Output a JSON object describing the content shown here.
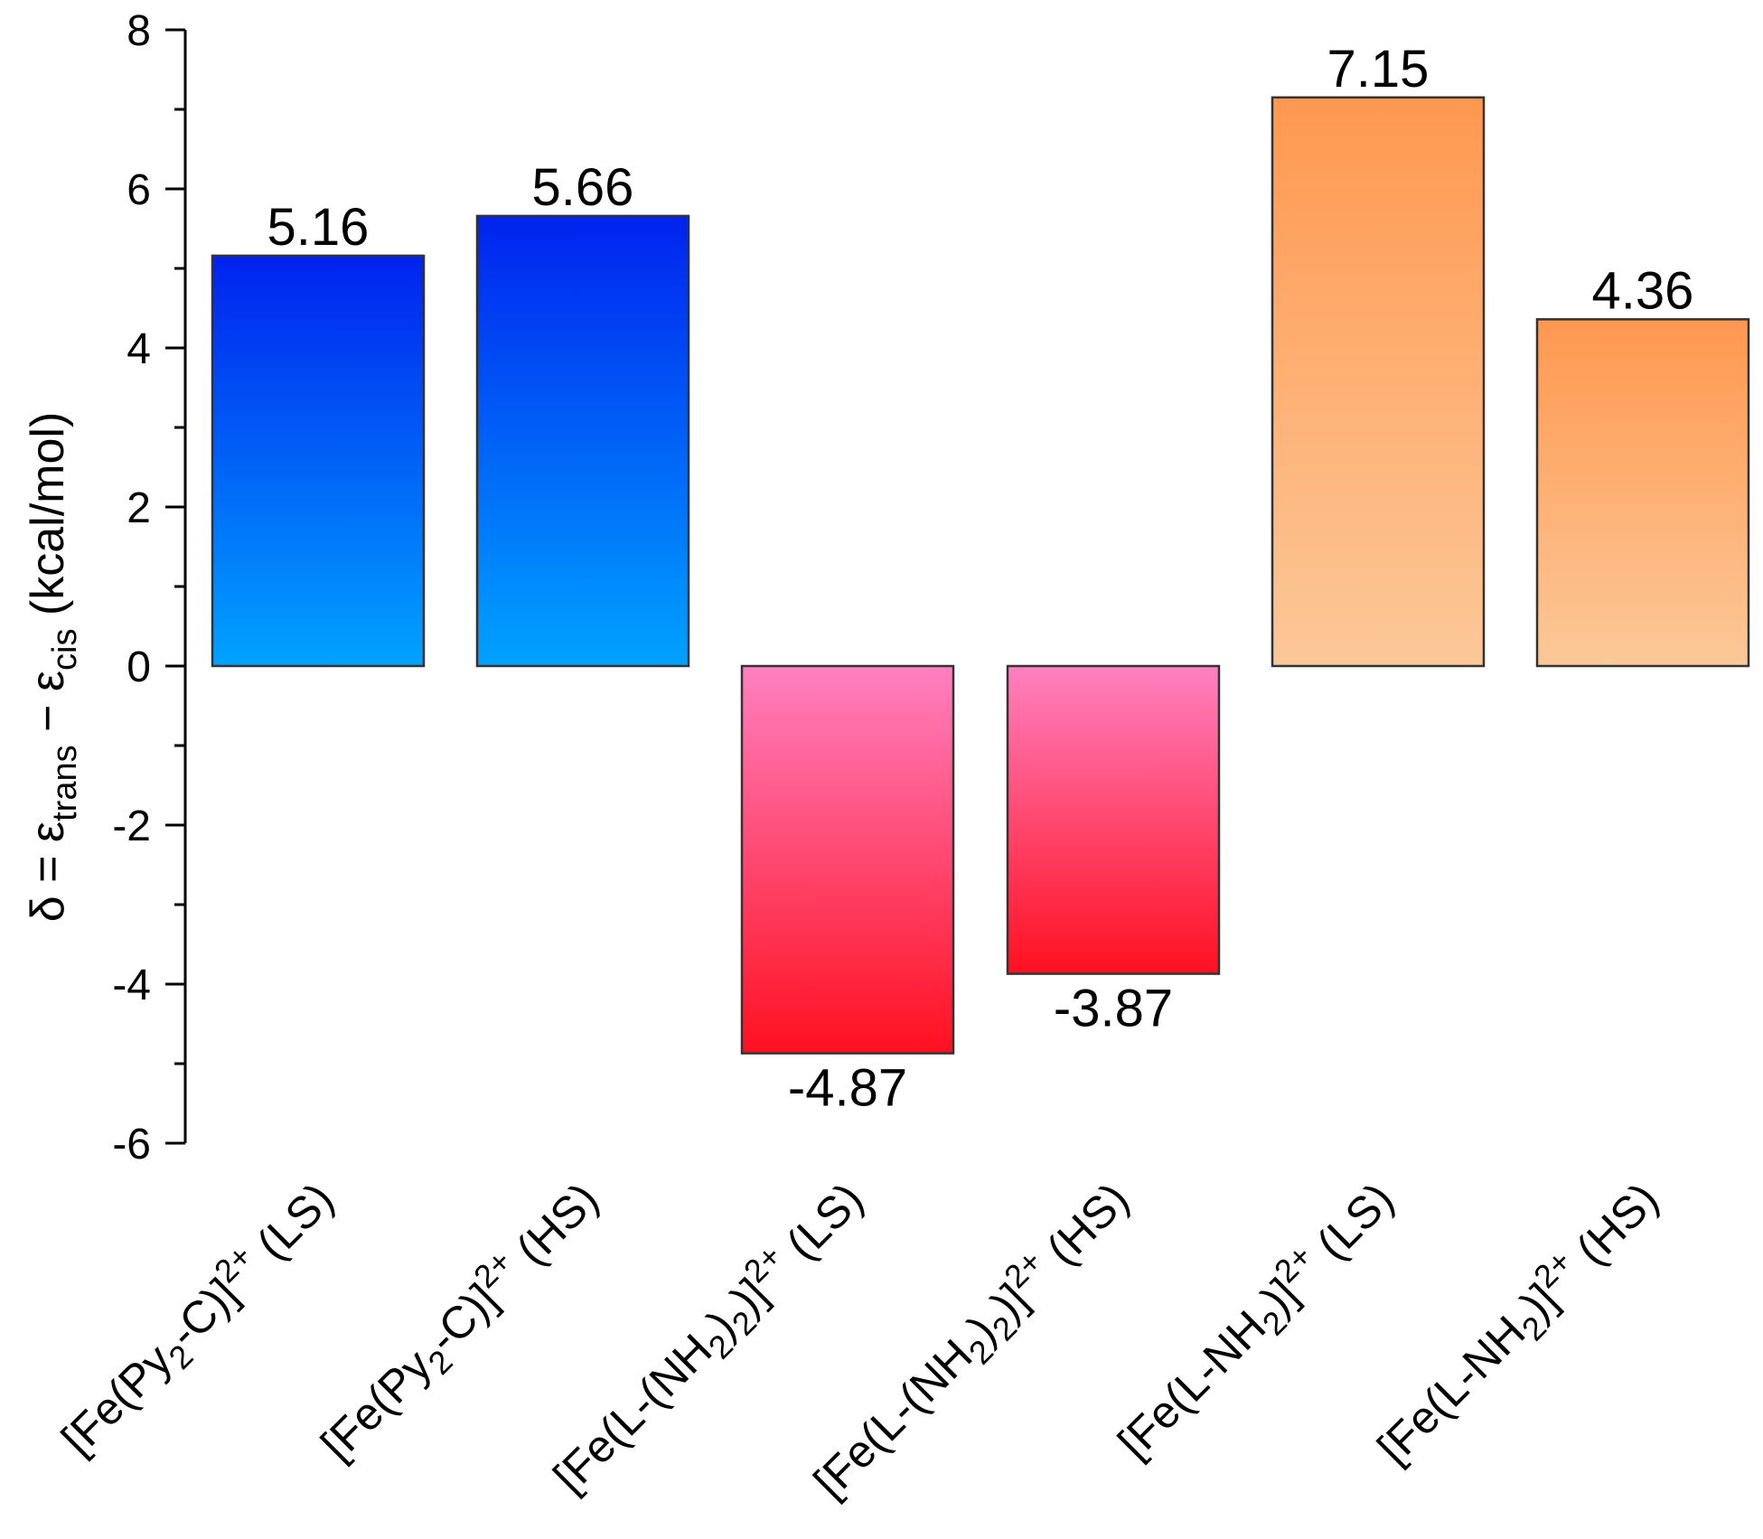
{
  "chart_data": {
    "type": "bar",
    "title": "",
    "xlabel": "",
    "ylabel": {
      "prefix": "δ = ε",
      "sub1": "trans",
      "middle": " − ε",
      "sub2": "cis",
      "suffix": " (kcal/mol)"
    },
    "ylim": [
      -6,
      8
    ],
    "yticks": [
      -6,
      -4,
      -2,
      0,
      2,
      4,
      6,
      8
    ],
    "minor_tick_step": 1,
    "grid": false,
    "legend": null,
    "categories": [
      {
        "parts": [
          [
            "[Fe(Py",
            "n"
          ],
          [
            "2",
            "sub"
          ],
          [
            "-C)]",
            "n"
          ],
          [
            "2+",
            "sup"
          ],
          [
            " (LS)",
            "n"
          ]
        ]
      },
      {
        "parts": [
          [
            "[Fe(Py",
            "n"
          ],
          [
            "2",
            "sub"
          ],
          [
            "-C)]",
            "n"
          ],
          [
            "2+",
            "sup"
          ],
          [
            " (HS)",
            "n"
          ]
        ]
      },
      {
        "parts": [
          [
            "[Fe(L-(NH",
            "n"
          ],
          [
            "2",
            "sub"
          ],
          [
            ")",
            "n"
          ],
          [
            "2",
            "sub"
          ],
          [
            ")]",
            "n"
          ],
          [
            "2+",
            "sup"
          ],
          [
            " (LS)",
            "n"
          ]
        ]
      },
      {
        "parts": [
          [
            "[Fe(L-(NH",
            "n"
          ],
          [
            "2",
            "sub"
          ],
          [
            ")",
            "n"
          ],
          [
            "2",
            "sub"
          ],
          [
            ")]",
            "n"
          ],
          [
            "2+",
            "sup"
          ],
          [
            " (HS)",
            "n"
          ]
        ]
      },
      {
        "parts": [
          [
            "[Fe(L-NH",
            "n"
          ],
          [
            "2",
            "sub"
          ],
          [
            ")]",
            "n"
          ],
          [
            "2+",
            "sup"
          ],
          [
            " (LS)",
            "n"
          ]
        ]
      },
      {
        "parts": [
          [
            "[Fe(L-NH",
            "n"
          ],
          [
            "2",
            "sub"
          ],
          [
            ")]",
            "n"
          ],
          [
            "2+",
            "sup"
          ],
          [
            " (HS)",
            "n"
          ]
        ]
      }
    ],
    "values": [
      5.16,
      5.66,
      -4.87,
      -3.87,
      7.15,
      4.36
    ],
    "value_labels": [
      "5.16",
      "5.66",
      "-4.87",
      "-3.87",
      "7.15",
      "4.36"
    ],
    "bar_gradients": [
      {
        "top": "#0022ee",
        "bottom": "#00a2ff"
      },
      {
        "top": "#0022ee",
        "bottom": "#00a2ff"
      },
      {
        "top": "#ff80c0",
        "bottom": "#ff1020"
      },
      {
        "top": "#ff80c0",
        "bottom": "#ff1020"
      },
      {
        "top": "#ff9850",
        "bottom": "#fcc898"
      },
      {
        "top": "#ff9850",
        "bottom": "#fcc898"
      }
    ],
    "bar_edge_color": "#333333"
  }
}
